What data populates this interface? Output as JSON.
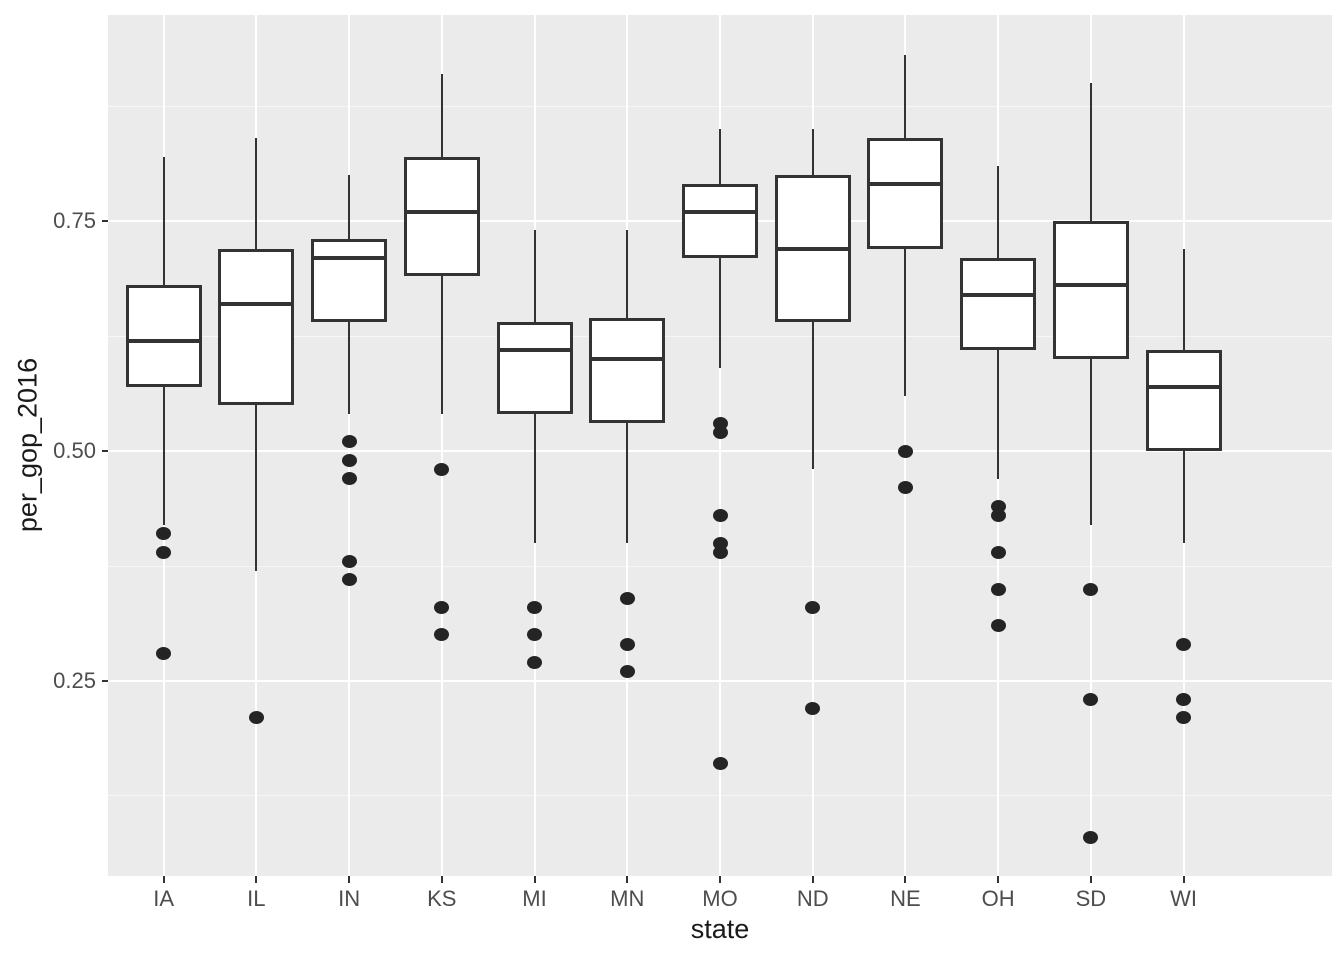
{
  "chart_data": {
    "type": "boxplot",
    "title": "",
    "xlabel": "state",
    "ylabel": "per_gop_2016",
    "categories": [
      "IA",
      "IL",
      "IN",
      "KS",
      "MI",
      "MN",
      "MO",
      "ND",
      "NE",
      "OH",
      "SD",
      "WI"
    ],
    "y_tick_values": [
      0.25,
      0.5,
      0.75
    ],
    "y_tick_labels": [
      "0.25",
      "0.50",
      "0.75"
    ],
    "y_minor_gridlines": [
      0.125,
      0.375,
      0.625,
      0.875
    ],
    "ylim": [
      0.038,
      0.974
    ],
    "grid": true,
    "legend_position": "none",
    "series": [
      {
        "category": "IA",
        "whisker_low": 0.42,
        "q1": 0.57,
        "median": 0.62,
        "q3": 0.68,
        "whisker_high": 0.82,
        "outliers": [
          0.41,
          0.39,
          0.28
        ]
      },
      {
        "category": "IL",
        "whisker_low": 0.37,
        "q1": 0.55,
        "median": 0.66,
        "q3": 0.72,
        "whisker_high": 0.84,
        "outliers": [
          0.21
        ]
      },
      {
        "category": "IN",
        "whisker_low": 0.54,
        "q1": 0.64,
        "median": 0.71,
        "q3": 0.73,
        "whisker_high": 0.8,
        "outliers": [
          0.51,
          0.49,
          0.47,
          0.38,
          0.36
        ]
      },
      {
        "category": "KS",
        "whisker_low": 0.54,
        "q1": 0.69,
        "median": 0.76,
        "q3": 0.82,
        "whisker_high": 0.91,
        "outliers": [
          0.48,
          0.33,
          0.3
        ]
      },
      {
        "category": "MI",
        "whisker_low": 0.4,
        "q1": 0.54,
        "median": 0.61,
        "q3": 0.64,
        "whisker_high": 0.74,
        "outliers": [
          0.33,
          0.3,
          0.27
        ]
      },
      {
        "category": "MN",
        "whisker_low": 0.4,
        "q1": 0.53,
        "median": 0.6,
        "q3": 0.645,
        "whisker_high": 0.74,
        "outliers": [
          0.34,
          0.29,
          0.26
        ]
      },
      {
        "category": "MO",
        "whisker_low": 0.59,
        "q1": 0.71,
        "median": 0.76,
        "q3": 0.79,
        "whisker_high": 0.85,
        "outliers": [
          0.53,
          0.52,
          0.43,
          0.4,
          0.39,
          0.16
        ]
      },
      {
        "category": "ND",
        "whisker_low": 0.48,
        "q1": 0.64,
        "median": 0.72,
        "q3": 0.8,
        "whisker_high": 0.85,
        "outliers": [
          0.33,
          0.22
        ]
      },
      {
        "category": "NE",
        "whisker_low": 0.56,
        "q1": 0.72,
        "median": 0.79,
        "q3": 0.84,
        "whisker_high": 0.93,
        "outliers": [
          0.5,
          0.46
        ]
      },
      {
        "category": "OH",
        "whisker_low": 0.47,
        "q1": 0.61,
        "median": 0.67,
        "q3": 0.71,
        "whisker_high": 0.81,
        "outliers": [
          0.44,
          0.43,
          0.39,
          0.35,
          0.31
        ]
      },
      {
        "category": "SD",
        "whisker_low": 0.42,
        "q1": 0.6,
        "median": 0.68,
        "q3": 0.75,
        "whisker_high": 0.9,
        "outliers": [
          0.35,
          0.23,
          0.08
        ]
      },
      {
        "category": "WI",
        "whisker_low": 0.4,
        "q1": 0.5,
        "median": 0.57,
        "q3": 0.61,
        "whisker_high": 0.72,
        "outliers": [
          0.29,
          0.23,
          0.21
        ]
      }
    ],
    "colors": {
      "panel_bg": "#EBEBEB",
      "gridline": "#FFFFFF",
      "box_fill": "#FFFFFF",
      "box_stroke": "#333333",
      "outlier": "#242424",
      "tick_mark": "#333333",
      "tick_label": "#4D4D4D",
      "axis_title": "#1A1A1A"
    }
  }
}
